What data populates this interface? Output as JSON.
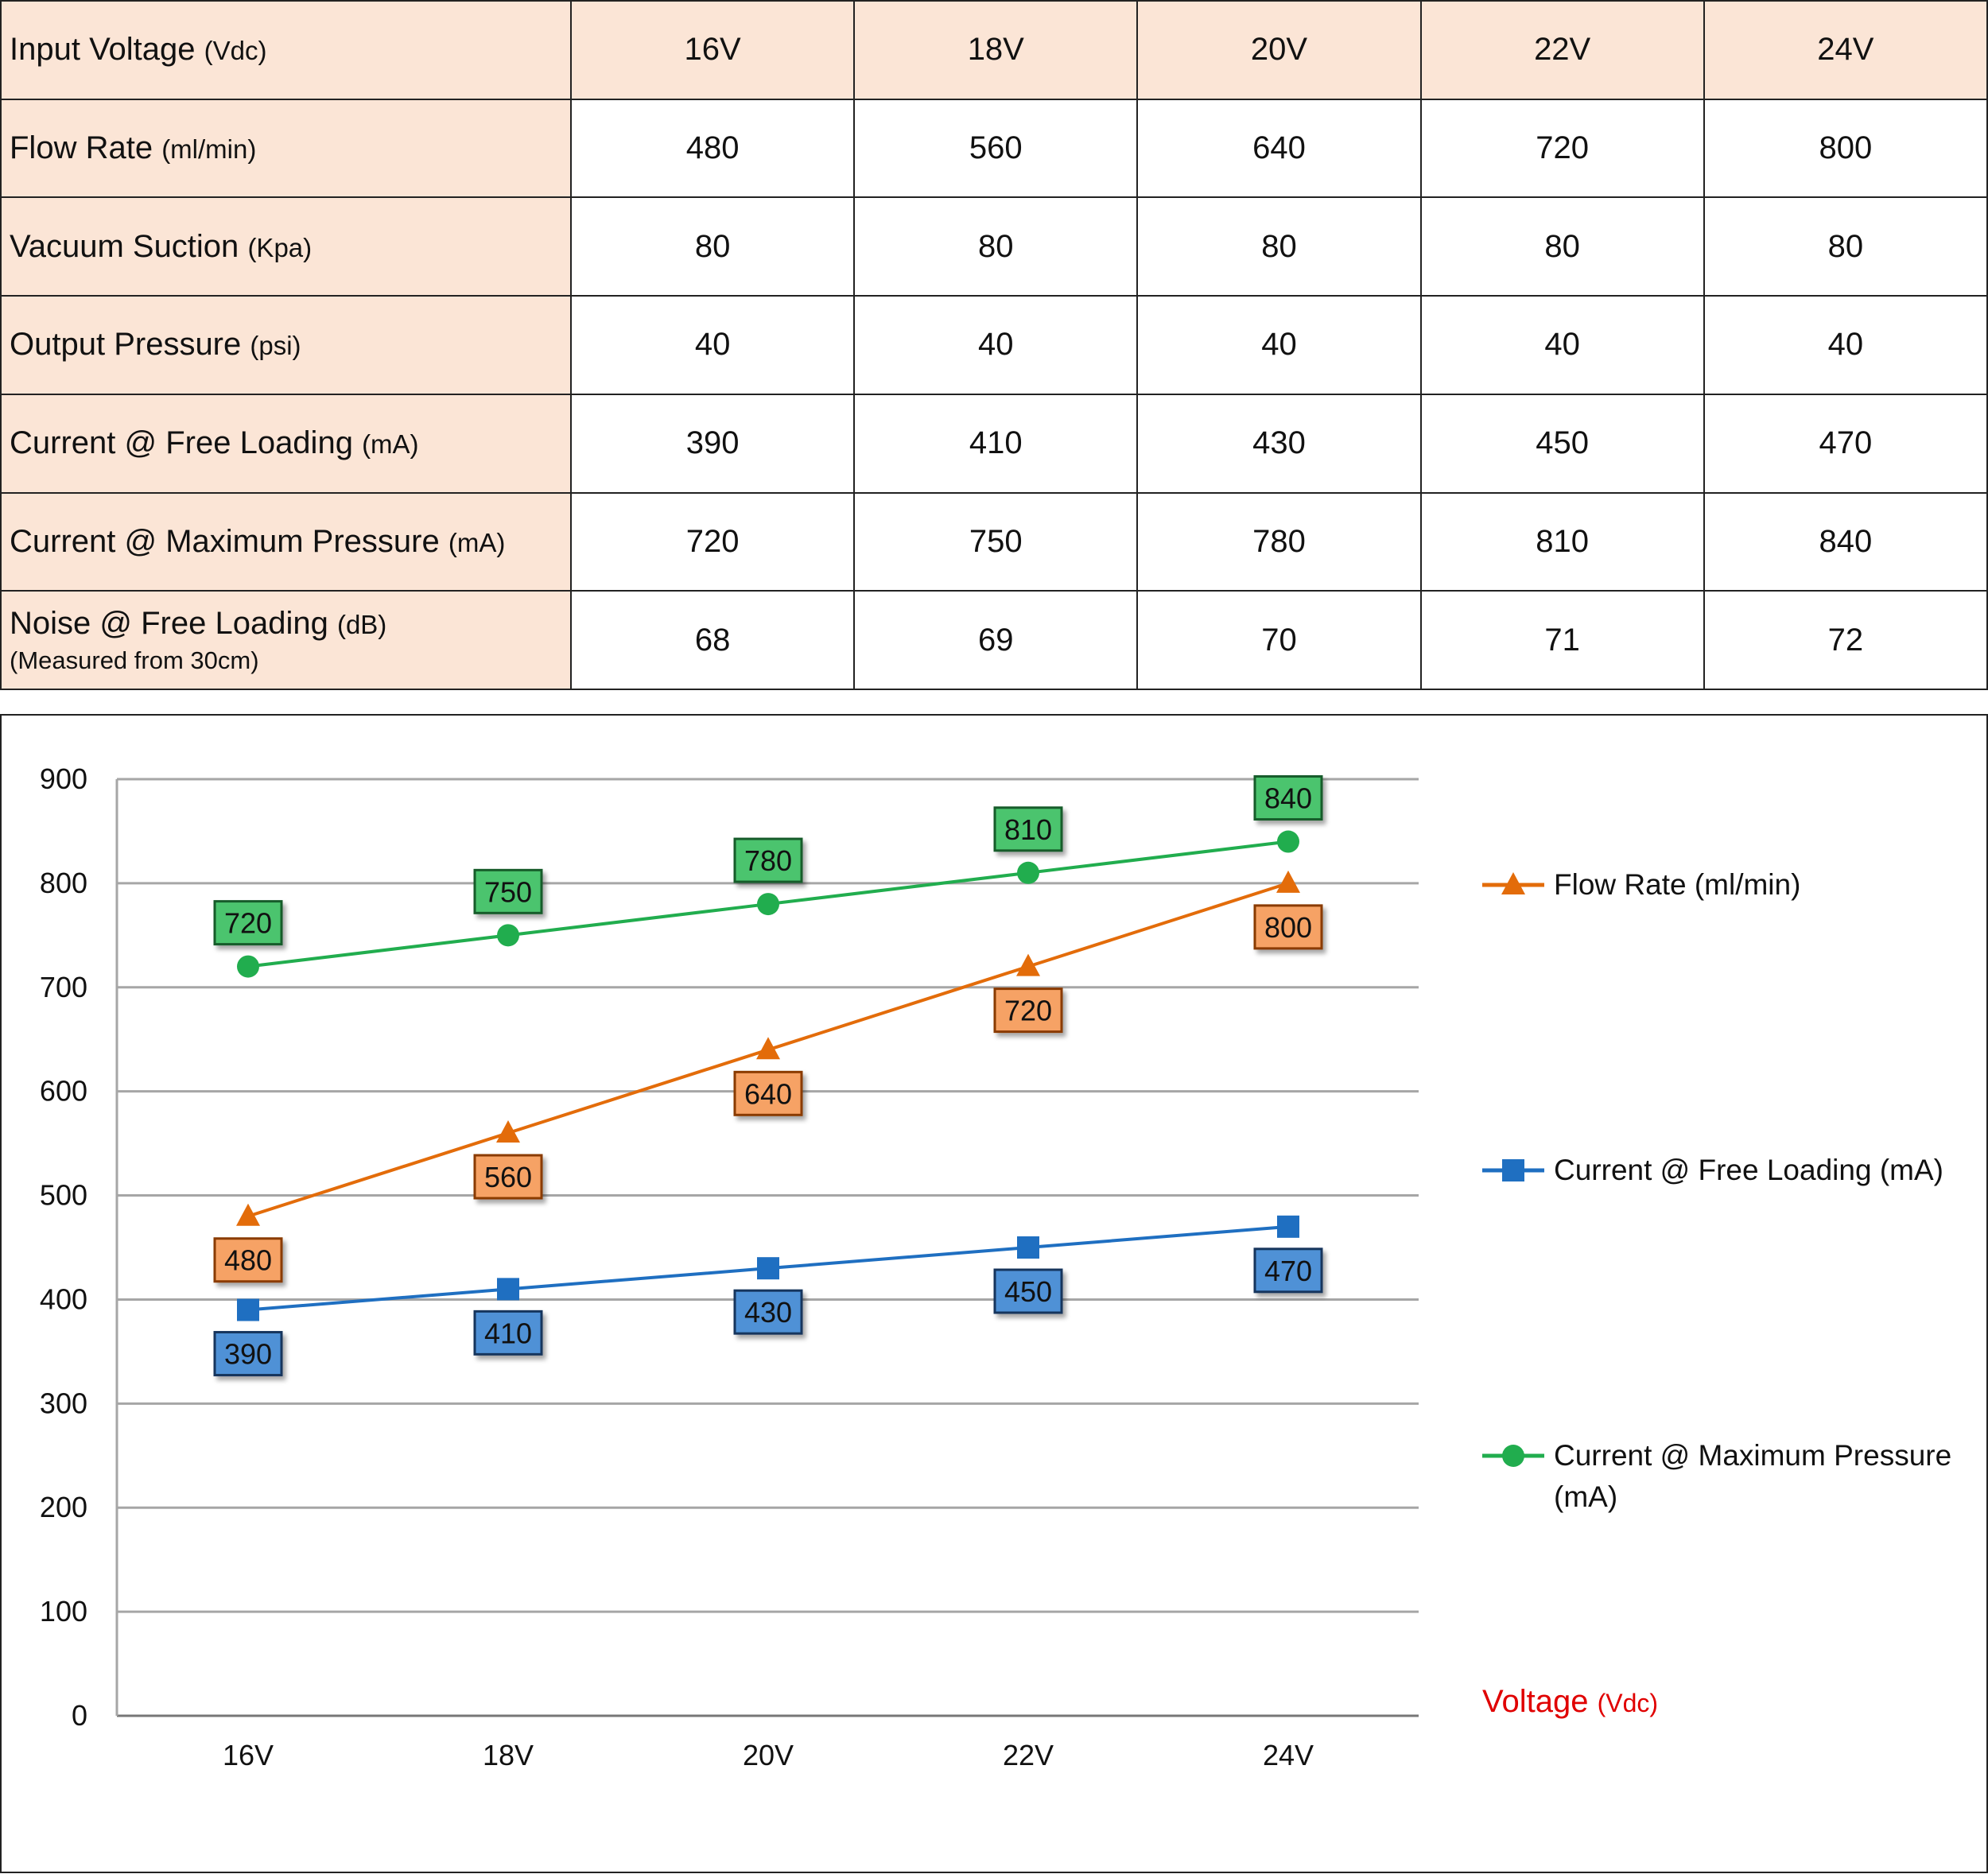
{
  "table": {
    "header": {
      "label": "Input Voltage",
      "unit": "(Vdc)",
      "values": [
        "16V",
        "18V",
        "20V",
        "22V",
        "24V"
      ]
    },
    "rows": [
      {
        "label": "Flow Rate",
        "unit": "(ml/min)",
        "values": [
          "480",
          "560",
          "640",
          "720",
          "800"
        ]
      },
      {
        "label": "Vacuum Suction",
        "unit": "(Kpa)",
        "values": [
          "80",
          "80",
          "80",
          "80",
          "80"
        ]
      },
      {
        "label": "Output Pressure",
        "unit": "(psi)",
        "values": [
          "40",
          "40",
          "40",
          "40",
          "40"
        ]
      },
      {
        "label": "Current @ Free Loading",
        "unit": "(mA)",
        "values": [
          "390",
          "410",
          "430",
          "450",
          "470"
        ]
      },
      {
        "label": "Current @ Maximum Pressure",
        "unit": "(mA)",
        "values": [
          "720",
          "750",
          "780",
          "810",
          "840"
        ]
      },
      {
        "label": "Noise @ Free Loading",
        "unit": "(dB)",
        "note": "(Measured from 30cm)",
        "values": [
          "68",
          "69",
          "70",
          "71",
          "72"
        ]
      }
    ]
  },
  "chart_data": {
    "type": "line",
    "categories": [
      "16V",
      "18V",
      "20V",
      "22V",
      "24V"
    ],
    "series": [
      {
        "name": "Flow Rate (ml/min)",
        "values": [
          480,
          560,
          640,
          720,
          800
        ],
        "color": "#e36c0a",
        "marker": "triangle",
        "label_fill": "#f6a265",
        "label_stroke": "#8a3a00"
      },
      {
        "name": "Current @ Free Loading (mA)",
        "values": [
          390,
          410,
          430,
          450,
          470
        ],
        "color": "#1f6fc1",
        "marker": "square",
        "label_fill": "#4f91d6",
        "label_stroke": "#17365d"
      },
      {
        "name": "Current @ Maximum Pressure (mA)",
        "values": [
          720,
          750,
          780,
          810,
          840
        ],
        "color": "#21ad4e",
        "marker": "circle",
        "label_fill": "#4cc46e",
        "label_stroke": "#185c2c"
      }
    ],
    "ylim": [
      0,
      900
    ],
    "yticks": [
      0,
      100,
      200,
      300,
      400,
      500,
      600,
      700,
      800,
      900
    ],
    "grid": true,
    "legend_position": "right",
    "xlabel": "Voltage",
    "xlabel_unit": "(Vdc)",
    "xlabel_color": "#e00000"
  }
}
